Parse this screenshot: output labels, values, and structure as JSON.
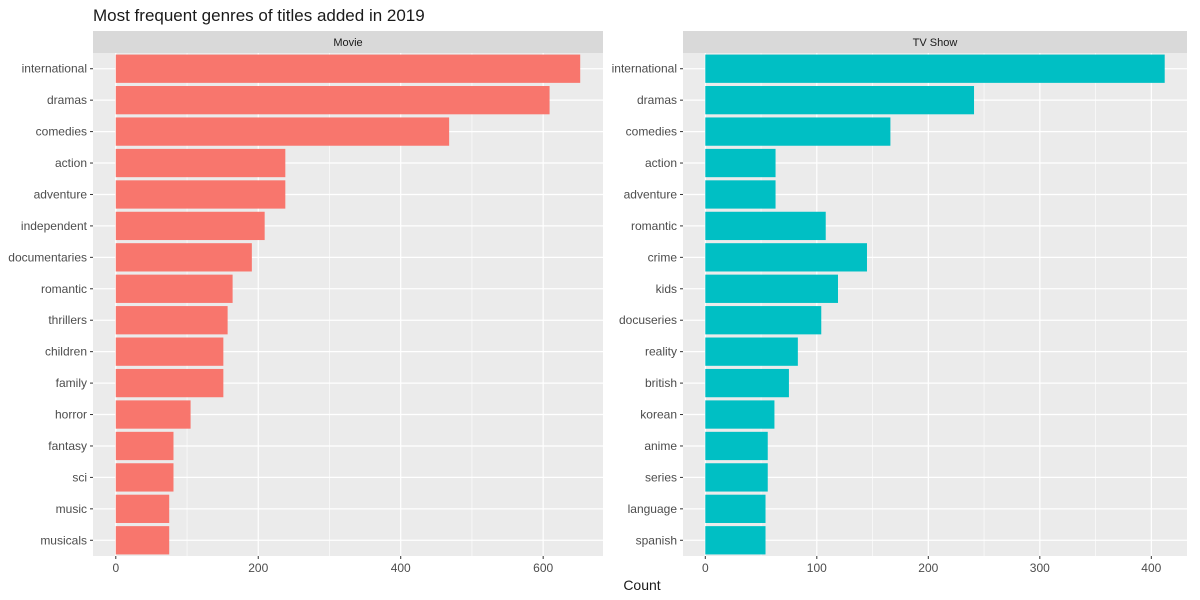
{
  "title": "Most frequent genres of titles added in 2019",
  "xlabel": "Count",
  "colors": {
    "Movie": "#F8766D",
    "TV Show": "#00BFC4",
    "panel": "#EBEBEB",
    "strip": "#D9D9D9",
    "grid": "#FFFFFF"
  },
  "chart_data": [
    {
      "type": "bar",
      "orientation": "horizontal",
      "facet": "Movie",
      "categories": [
        "international",
        "dramas",
        "comedies",
        "action",
        "adventure",
        "independent",
        "documentaries",
        "romantic",
        "thrillers",
        "children",
        "family",
        "horror",
        "fantasy",
        "sci",
        "music",
        "musicals"
      ],
      "values": [
        652,
        609,
        468,
        238,
        238,
        209,
        191,
        164,
        157,
        151,
        151,
        105,
        81,
        81,
        75,
        75
      ],
      "xlim": [
        -32,
        684
      ],
      "xticks": [
        0,
        200,
        400,
        600
      ],
      "xlabel": "Count",
      "color": "#F8766D"
    },
    {
      "type": "bar",
      "orientation": "horizontal",
      "facet": "TV Show",
      "categories": [
        "international",
        "dramas",
        "comedies",
        "action",
        "adventure",
        "romantic",
        "crime",
        "kids",
        "docuseries",
        "reality",
        "british",
        "korean",
        "anime",
        "series",
        "language",
        "spanish"
      ],
      "values": [
        412,
        241,
        166,
        63,
        63,
        108,
        145,
        119,
        104,
        83,
        75,
        62,
        56,
        56,
        54,
        54
      ],
      "xlim": [
        -20,
        432
      ],
      "xticks": [
        0,
        100,
        200,
        300,
        400
      ],
      "xlabel": "Count",
      "color": "#00BFC4"
    }
  ]
}
